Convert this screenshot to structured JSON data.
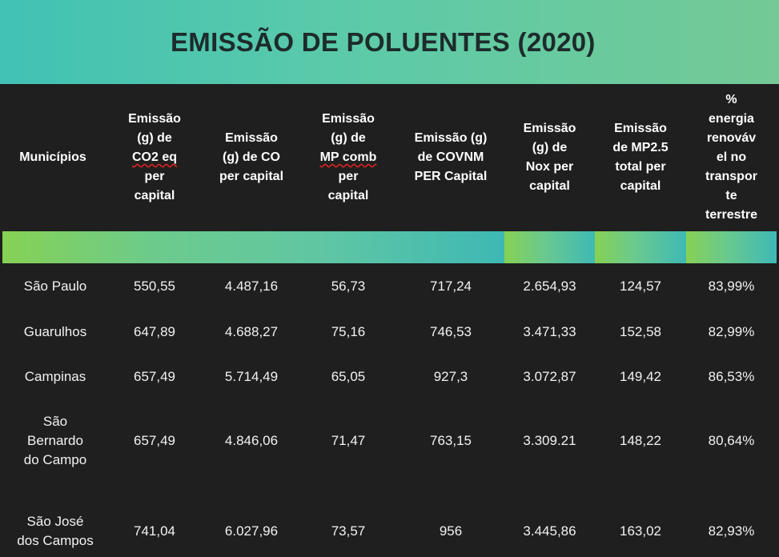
{
  "title": "EMISSÃO DE POLUENTES (2020)",
  "table": {
    "headers": [
      [
        "Municípios"
      ],
      [
        "Emissão",
        "(g) de",
        "CO2 eq",
        "per",
        "capital"
      ],
      [
        "Emissão",
        "(g) de CO",
        "per capital"
      ],
      [
        "Emissão",
        "(g) de",
        "MP comb",
        "per",
        "capital"
      ],
      [
        "Emissão (g)",
        "de COVNM",
        "PER Capital"
      ],
      [
        "Emissão",
        "(g) de",
        "Nox per",
        "capital"
      ],
      [
        "Emissão",
        "de MP2.5",
        "total per",
        "capital"
      ],
      [
        "%",
        "energia",
        "renováv",
        "el no",
        "transpor",
        "te",
        "terrestre"
      ]
    ],
    "rows": [
      [
        [
          "São Paulo"
        ],
        "550,55",
        "4.487,16",
        "56,73",
        "717,24",
        "2.654,93",
        "124,57",
        "83,99%"
      ],
      [
        [
          "Guarulhos"
        ],
        "647,89",
        "4.688,27",
        "75,16",
        "746,53",
        "3.471,33",
        "152,58",
        "82,99%"
      ],
      [
        [
          "Campinas"
        ],
        "657,49",
        "5.714,49",
        "65,05",
        "927,3",
        "3.072,87",
        "149,42",
        "86,53%"
      ],
      [
        [
          "São",
          "Bernardo",
          "do Campo"
        ],
        "657,49",
        "4.846,06",
        "71,47",
        "763,15",
        "3.309.21",
        "148,22",
        "80,64%"
      ],
      [
        [
          "São José",
          "dos Campos"
        ],
        "741,04",
        "6.027,96",
        "73,57",
        "956",
        "3.445,86",
        "163,02",
        "82,93%"
      ]
    ]
  },
  "colors": {
    "title_band_gradient": [
      "#41c2b4",
      "#74c995"
    ],
    "stripe_gradient": [
      "#86d154",
      "#3eb8b4"
    ],
    "background": "#1f1f1f",
    "title_text": "#1d2b2b"
  }
}
